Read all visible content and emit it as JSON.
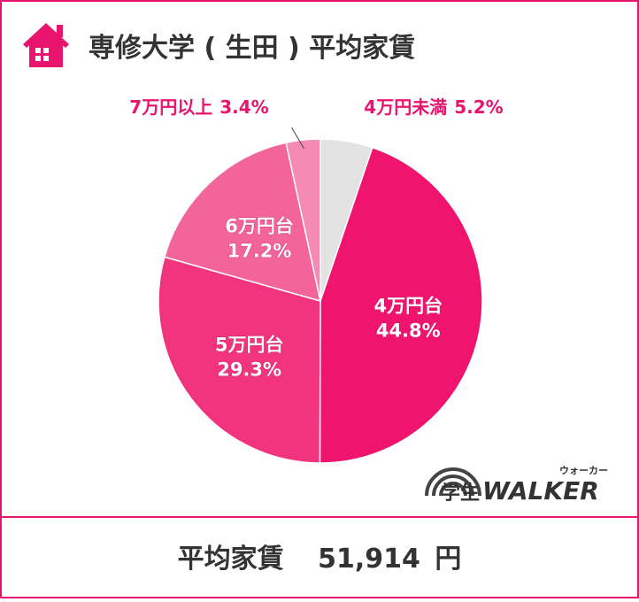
{
  "chart_data": {
    "type": "pie",
    "title": "専修大学 ( 生田 ) 平均家賃",
    "categories": [
      "4万円未満",
      "4万円台",
      "5万円台",
      "6万円台",
      "7万円以上"
    ],
    "values": [
      5.2,
      44.8,
      29.3,
      17.2,
      3.4
    ],
    "value_labels": [
      "5.2%",
      "44.8%",
      "29.3%",
      "17.2%",
      "3.4%"
    ],
    "colors": [
      "#e3e3e3",
      "#f0146e",
      "#f2347f",
      "#f2649a",
      "#f58bb4"
    ]
  },
  "logo": {
    "text": "学生",
    "brand": "WALKER",
    "ruby": "ウォーカー"
  },
  "footer": {
    "label": "平均家賃",
    "amount": "51,914",
    "unit": "円"
  }
}
